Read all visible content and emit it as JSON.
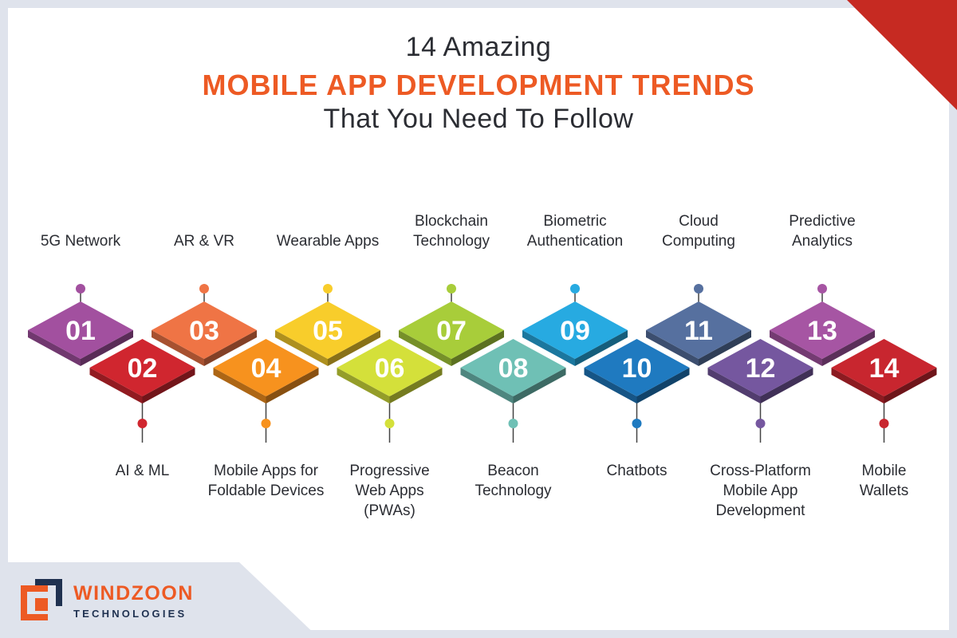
{
  "header": {
    "title_line1": "14 Amazing",
    "title_line2": "MOBILE APP DEVELOPMENT TRENDS",
    "title_line3": "That You Need To Follow"
  },
  "colors": {
    "accent": "#ed5a24",
    "corner": "#c62a22",
    "text": "#2b2d33"
  },
  "trends": [
    {
      "num": "01",
      "label": "5G Network",
      "color": "#a2509f"
    },
    {
      "num": "02",
      "label": "AI & ML",
      "color": "#d0262f"
    },
    {
      "num": "03",
      "label": "AR & VR",
      "color": "#ef7445"
    },
    {
      "num": "04",
      "label": "Mobile Apps for\nFoldable Devices",
      "color": "#f7921e"
    },
    {
      "num": "05",
      "label": "Wearable Apps",
      "color": "#f8cd2b"
    },
    {
      "num": "06",
      "label": "Progressive\nWeb Apps\n(PWAs)",
      "color": "#d4e03a"
    },
    {
      "num": "07",
      "label": "Blockchain\nTechnology",
      "color": "#a8cd3a"
    },
    {
      "num": "08",
      "label": "Beacon\nTechnology",
      "color": "#6fc0b5"
    },
    {
      "num": "09",
      "label": "Biometric\nAuthentication",
      "color": "#27aae1"
    },
    {
      "num": "10",
      "label": "Chatbots",
      "color": "#1f7ac0"
    },
    {
      "num": "11",
      "label": "Cloud\nComputing",
      "color": "#56709f"
    },
    {
      "num": "12",
      "label": "Cross-Platform\nMobile App\nDevelopment",
      "color": "#75579f"
    },
    {
      "num": "13",
      "label": "Predictive\nAnalytics",
      "color": "#a655a3"
    },
    {
      "num": "14",
      "label": "Mobile\nWallets",
      "color": "#c8262f"
    }
  ],
  "logo": {
    "name": "WINDZOON",
    "subtitle": "TECHNOLOGIES"
  }
}
